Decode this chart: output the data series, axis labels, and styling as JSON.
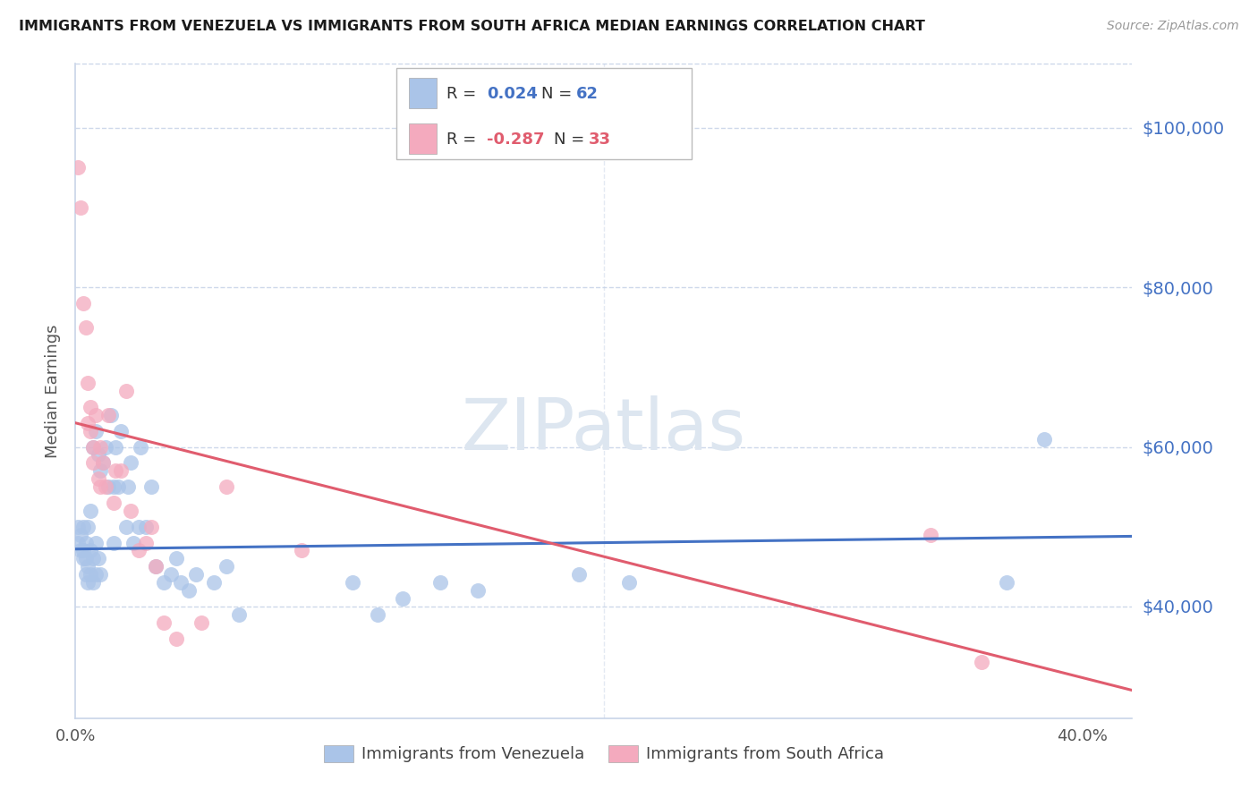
{
  "title": "IMMIGRANTS FROM VENEZUELA VS IMMIGRANTS FROM SOUTH AFRICA MEDIAN EARNINGS CORRELATION CHART",
  "source": "Source: ZipAtlas.com",
  "ylabel": "Median Earnings",
  "xlim": [
    0.0,
    0.42
  ],
  "ylim": [
    26000,
    108000
  ],
  "ytick_positions": [
    40000,
    60000,
    80000,
    100000
  ],
  "ytick_labels": [
    "$40,000",
    "$60,000",
    "$80,000",
    "$100,000"
  ],
  "watermark": "ZIPatlas",
  "blue_color": "#4472c4",
  "pink_color": "#e05c6e",
  "dot_blue": "#aac4e8",
  "dot_pink": "#f4aabe",
  "background": "#ffffff",
  "grid_color": "#c8d4e8",
  "venezuela_trend_x": [
    0.0,
    0.42
  ],
  "venezuela_trend_y": [
    47200,
    48800
  ],
  "southafrica_trend_x": [
    0.0,
    0.42
  ],
  "southafrica_trend_y": [
    63000,
    29500
  ],
  "venezuela_x": [
    0.001,
    0.001,
    0.002,
    0.002,
    0.003,
    0.003,
    0.003,
    0.004,
    0.004,
    0.004,
    0.005,
    0.005,
    0.005,
    0.006,
    0.006,
    0.006,
    0.007,
    0.007,
    0.007,
    0.008,
    0.008,
    0.008,
    0.009,
    0.009,
    0.01,
    0.01,
    0.011,
    0.012,
    0.013,
    0.014,
    0.015,
    0.015,
    0.016,
    0.017,
    0.018,
    0.02,
    0.021,
    0.022,
    0.023,
    0.025,
    0.026,
    0.028,
    0.03,
    0.032,
    0.035,
    0.038,
    0.04,
    0.042,
    0.045,
    0.048,
    0.055,
    0.06,
    0.065,
    0.11,
    0.12,
    0.13,
    0.145,
    0.16,
    0.2,
    0.22,
    0.385,
    0.37
  ],
  "venezuela_y": [
    48000,
    50000,
    47000,
    49000,
    46000,
    47000,
    50000,
    44000,
    46000,
    48000,
    43000,
    45000,
    50000,
    44000,
    47000,
    52000,
    43000,
    46000,
    60000,
    44000,
    48000,
    62000,
    46000,
    59000,
    44000,
    57000,
    58000,
    60000,
    55000,
    64000,
    48000,
    55000,
    60000,
    55000,
    62000,
    50000,
    55000,
    58000,
    48000,
    50000,
    60000,
    50000,
    55000,
    45000,
    43000,
    44000,
    46000,
    43000,
    42000,
    44000,
    43000,
    45000,
    39000,
    43000,
    39000,
    41000,
    43000,
    42000,
    44000,
    43000,
    61000,
    43000
  ],
  "southafrica_x": [
    0.001,
    0.002,
    0.003,
    0.004,
    0.005,
    0.005,
    0.006,
    0.006,
    0.007,
    0.007,
    0.008,
    0.009,
    0.01,
    0.01,
    0.011,
    0.012,
    0.013,
    0.015,
    0.016,
    0.018,
    0.02,
    0.022,
    0.025,
    0.028,
    0.03,
    0.032,
    0.035,
    0.04,
    0.05,
    0.06,
    0.09,
    0.34,
    0.36
  ],
  "southafrica_y": [
    95000,
    90000,
    78000,
    75000,
    68000,
    63000,
    62000,
    65000,
    60000,
    58000,
    64000,
    56000,
    55000,
    60000,
    58000,
    55000,
    64000,
    53000,
    57000,
    57000,
    67000,
    52000,
    47000,
    48000,
    50000,
    45000,
    38000,
    36000,
    38000,
    55000,
    47000,
    49000,
    33000
  ]
}
